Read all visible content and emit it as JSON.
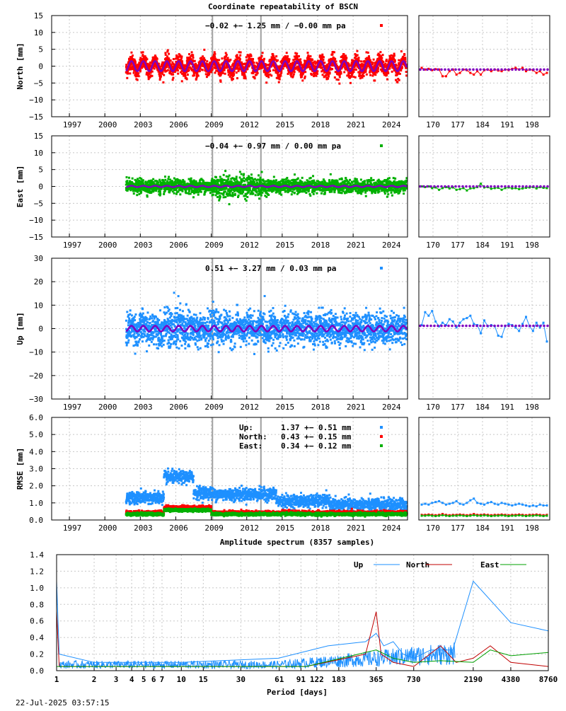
{
  "title": "Coordinate repeatability of BSCN",
  "timestamp": "22-Jul-2025 03:57:15",
  "chart_data": [
    {
      "id": "north",
      "type": "scatter",
      "ylabel": "North [mm]",
      "ylim": [
        -15,
        15
      ],
      "yticks": [
        "15",
        "10",
        "5",
        "0",
        "−5",
        "−10",
        "−15"
      ],
      "yticks_values": [
        15,
        10,
        5,
        0,
        -5,
        -10,
        -15
      ],
      "xlim": [
        1995.5,
        2025.6
      ],
      "xticks": [
        "1997",
        "2000",
        "2003",
        "2006",
        "2009",
        "2012",
        "2015",
        "2018",
        "2021",
        "2024"
      ],
      "xticks_values": [
        1997,
        2000,
        2003,
        2006,
        2009,
        2012,
        2015,
        2018,
        2021,
        2024
      ],
      "data_start": 2001.8,
      "data_end": 2025.55,
      "trend_text": "−0.02 +− 1.25 mm / −0.00 mm pa",
      "color": "#ff0000",
      "offset": 0.0,
      "annual_amplitude": 1.5,
      "scatter_sigma": 1.25,
      "side_xticks": [
        "170",
        "177",
        "184",
        "191",
        "198"
      ],
      "side_xticks_values": [
        170,
        177,
        184,
        191,
        198
      ],
      "side_xlim": [
        166,
        203
      ],
      "side_values": [
        -0.5,
        -1.0,
        -0.8,
        -1.2,
        -0.9,
        -1.0,
        -3.0,
        -3.0,
        -1.5,
        -1.0,
        -2.5,
        -2.0,
        -1.0,
        -1.2,
        -2.0,
        -2.5,
        -1.5,
        -2.5,
        -1.2,
        -1.0,
        -1.5,
        -1.0,
        -1.3,
        -1.5,
        -1.0,
        -1.2,
        -0.8,
        -0.5,
        -1.0,
        -0.5,
        -1.5,
        -1.0,
        -1.2,
        -2.0,
        -1.5,
        -2.5,
        -2.0
      ],
      "side_fit": -1.0
    },
    {
      "id": "east",
      "type": "scatter",
      "ylabel": "East [mm]",
      "ylim": [
        -15,
        15
      ],
      "yticks": [
        "15",
        "10",
        "5",
        "0",
        "−5",
        "−10",
        "−15"
      ],
      "yticks_values": [
        15,
        10,
        5,
        0,
        -5,
        -10,
        -15
      ],
      "xlim": [
        1995.5,
        2025.6
      ],
      "xticks": [
        "1997",
        "2000",
        "2003",
        "2006",
        "2009",
        "2012",
        "2015",
        "2018",
        "2021",
        "2024"
      ],
      "xticks_values": [
        1997,
        2000,
        2003,
        2006,
        2009,
        2012,
        2015,
        2018,
        2021,
        2024
      ],
      "data_start": 2001.8,
      "data_end": 2025.55,
      "trend_text": "−0.04 +− 0.97 mm /  0.00 mm pa",
      "color": "#00b000",
      "offset": 0.0,
      "annual_amplitude": 0.2,
      "scatter_sigma": 0.97,
      "side_xticks": [
        "170",
        "177",
        "184",
        "191",
        "198"
      ],
      "side_xticks_values": [
        170,
        177,
        184,
        191,
        198
      ],
      "side_xlim": [
        166,
        203
      ],
      "side_values": [
        0.0,
        -0.2,
        0.0,
        -0.5,
        -0.3,
        -1.0,
        -0.5,
        -0.2,
        -0.6,
        -0.3,
        -1.0,
        -0.8,
        -0.5,
        -1.2,
        -0.6,
        -0.5,
        -0.2,
        0.8,
        -0.3,
        -0.2,
        -0.7,
        -0.5,
        -0.4,
        -1.0,
        -0.5,
        -0.3,
        -0.6,
        -0.5,
        -0.8,
        -0.6,
        -0.4,
        -0.3,
        -0.2,
        -0.6,
        -0.2,
        -0.4,
        -0.5
      ],
      "side_fit": 0.0
    },
    {
      "id": "up",
      "type": "scatter",
      "ylabel": "Up [mm]",
      "ylim": [
        -30,
        30
      ],
      "yticks": [
        "30",
        "20",
        "10",
        "0",
        "−10",
        "−20",
        "−30"
      ],
      "yticks_values": [
        30,
        20,
        10,
        0,
        -10,
        -20,
        -30
      ],
      "xlim": [
        1995.5,
        2025.6
      ],
      "xticks": [
        "1997",
        "2000",
        "2003",
        "2006",
        "2009",
        "2012",
        "2015",
        "2018",
        "2021",
        "2024"
      ],
      "xticks_values": [
        1997,
        2000,
        2003,
        2006,
        2009,
        2012,
        2015,
        2018,
        2021,
        2024
      ],
      "data_start": 2001.8,
      "data_end": 2025.55,
      "trend_text": " 0.51 +− 3.27 mm /  0.03 mm pa",
      "color": "#1e90ff",
      "offset": 0.0,
      "annual_amplitude": 1.2,
      "scatter_sigma": 3.27,
      "side_xticks": [
        "170",
        "177",
        "184",
        "191",
        "198"
      ],
      "side_xticks_values": [
        170,
        177,
        184,
        191,
        198
      ],
      "side_xlim": [
        166,
        203
      ],
      "side_values": [
        1.5,
        7.0,
        5.5,
        7.5,
        3.0,
        1.0,
        2.5,
        1.5,
        4.0,
        3.0,
        0.5,
        2.5,
        4.0,
        4.5,
        5.5,
        2.0,
        1.5,
        -2.0,
        3.5,
        1.0,
        1.5,
        1.0,
        -3.0,
        -3.5,
        1.0,
        2.0,
        1.5,
        0.5,
        -1.0,
        2.0,
        5.0,
        1.0,
        -1.0,
        2.5,
        0.5,
        2.5,
        -5.5
      ],
      "side_fit": 1.2
    },
    {
      "id": "rmse",
      "type": "scatter",
      "ylabel": "RMSE [mm]",
      "ylim": [
        0,
        6
      ],
      "yticks": [
        "6.0",
        "5.0",
        "4.0",
        "3.0",
        "2.0",
        "1.0",
        "0.0"
      ],
      "yticks_values": [
        6,
        5,
        4,
        3,
        2,
        1,
        0
      ],
      "xlim": [
        1995.5,
        2025.6
      ],
      "xticks": [
        "1997",
        "2000",
        "2003",
        "2006",
        "2009",
        "2012",
        "2015",
        "2018",
        "2021",
        "2024"
      ],
      "xticks_values": [
        1997,
        2000,
        2003,
        2006,
        2009,
        2012,
        2015,
        2018,
        2021,
        2024
      ],
      "data_start": 2001.8,
      "data_end": 2025.55,
      "legend": [
        {
          "name": "Up:",
          "text": "1.37 +− 0.51 mm",
          "color": "#1e90ff"
        },
        {
          "name": "North:",
          "text": "0.43 +− 0.15 mm",
          "color": "#ff0000"
        },
        {
          "name": "East:",
          "text": "0.34 +− 0.12 mm",
          "color": "#00b000"
        }
      ],
      "series": [
        {
          "name": "Up",
          "color": "#1e90ff",
          "mean": 1.37,
          "sigma": 0.51
        },
        {
          "name": "North",
          "color": "#ff0000",
          "mean": 0.43,
          "sigma": 0.15
        },
        {
          "name": "East",
          "color": "#00b000",
          "mean": 0.34,
          "sigma": 0.12
        }
      ],
      "side_xticks": [
        "170",
        "177",
        "184",
        "191",
        "198"
      ],
      "side_xticks_values": [
        170,
        177,
        184,
        191,
        198
      ],
      "side_xlim": [
        166,
        203
      ],
      "side_series": [
        {
          "name": "Up",
          "color": "#1e90ff",
          "values": [
            0.9,
            0.95,
            0.9,
            1.0,
            1.05,
            1.1,
            1.0,
            0.9,
            0.95,
            1.0,
            1.1,
            0.95,
            0.9,
            1.0,
            1.15,
            1.25,
            1.0,
            0.95,
            0.9,
            1.0,
            1.05,
            0.95,
            0.9,
            1.0,
            0.95,
            0.9,
            0.85,
            0.9,
            0.95,
            0.9,
            0.85,
            0.8,
            0.85,
            0.8,
            0.9,
            0.85,
            0.85
          ]
        },
        {
          "name": "North",
          "color": "#ff0000",
          "values": [
            0.3,
            0.3,
            0.32,
            0.3,
            0.28,
            0.3,
            0.35,
            0.3,
            0.28,
            0.3,
            0.3,
            0.32,
            0.3,
            0.28,
            0.3,
            0.35,
            0.3,
            0.3,
            0.32,
            0.3,
            0.28,
            0.3,
            0.3,
            0.32,
            0.3,
            0.28,
            0.3,
            0.3,
            0.32,
            0.3,
            0.28,
            0.3,
            0.3,
            0.32,
            0.3,
            0.28,
            0.3
          ]
        },
        {
          "name": "East",
          "color": "#00b000",
          "values": [
            0.25,
            0.25,
            0.27,
            0.25,
            0.23,
            0.25,
            0.28,
            0.25,
            0.23,
            0.25,
            0.25,
            0.27,
            0.25,
            0.23,
            0.25,
            0.28,
            0.25,
            0.25,
            0.27,
            0.25,
            0.23,
            0.25,
            0.25,
            0.27,
            0.25,
            0.23,
            0.25,
            0.25,
            0.27,
            0.25,
            0.23,
            0.25,
            0.25,
            0.27,
            0.25,
            0.23,
            0.25
          ]
        }
      ]
    },
    {
      "id": "spectrum",
      "type": "line",
      "title": "Amplitude spectrum (8357 samples)",
      "xlabel": "Period [days]",
      "xscale": "log",
      "xticks": [
        "1",
        "2",
        "3",
        "4",
        "5",
        "6",
        "7",
        "10",
        "15",
        "30",
        "61",
        "91",
        "122",
        "183",
        "365",
        "730",
        "2190",
        "4380",
        "8760"
      ],
      "xticks_values": [
        1,
        2,
        3,
        4,
        5,
        6,
        7,
        10,
        15,
        30,
        61,
        91,
        122,
        183,
        365,
        730,
        2190,
        4380,
        8760
      ],
      "xlim": [
        1,
        8760
      ],
      "ylim": [
        0,
        1.4
      ],
      "yticks": [
        "1.4",
        "1.2",
        "1.0",
        "0.8",
        "0.6",
        "0.4",
        "0.2",
        "0.0"
      ],
      "yticks_values": [
        1.4,
        1.2,
        1.0,
        0.8,
        0.6,
        0.4,
        0.2,
        0.0
      ],
      "series": [
        {
          "name": "Up",
          "color": "#1e90ff",
          "points": [
            [
              1,
              1.08
            ],
            [
              1.05,
              0.2
            ],
            [
              2,
              0.1
            ],
            [
              10,
              0.1
            ],
            [
              60,
              0.15
            ],
            [
              150,
              0.3
            ],
            [
              300,
              0.35
            ],
            [
              365,
              0.45
            ],
            [
              420,
              0.3
            ],
            [
              500,
              0.35
            ],
            [
              600,
              0.2
            ],
            [
              730,
              0.15
            ],
            [
              1000,
              0.25
            ],
            [
              1500,
              0.25
            ],
            [
              2190,
              1.08
            ],
            [
              4380,
              0.58
            ],
            [
              8760,
              0.48
            ]
          ]
        },
        {
          "name": "North",
          "color": "#c00000",
          "points": [
            [
              1,
              0.72
            ],
            [
              1.05,
              0.05
            ],
            [
              100,
              0.05
            ],
            [
              300,
              0.2
            ],
            [
              365,
              0.71
            ],
            [
              400,
              0.2
            ],
            [
              500,
              0.1
            ],
            [
              730,
              0.05
            ],
            [
              1200,
              0.3
            ],
            [
              1600,
              0.1
            ],
            [
              2190,
              0.15
            ],
            [
              3000,
              0.3
            ],
            [
              4380,
              0.1
            ],
            [
              8760,
              0.05
            ]
          ]
        },
        {
          "name": "East",
          "color": "#00a000",
          "points": [
            [
              1,
              0.05
            ],
            [
              100,
              0.05
            ],
            [
              365,
              0.25
            ],
            [
              500,
              0.15
            ],
            [
              730,
              0.1
            ],
            [
              1200,
              0.12
            ],
            [
              2190,
              0.1
            ],
            [
              3000,
              0.25
            ],
            [
              4380,
              0.18
            ],
            [
              8760,
              0.22
            ]
          ]
        }
      ],
      "legend_position": "top-right"
    }
  ],
  "offsets": {
    "vertical_lines": [
      2009.1,
      2013.2
    ]
  }
}
